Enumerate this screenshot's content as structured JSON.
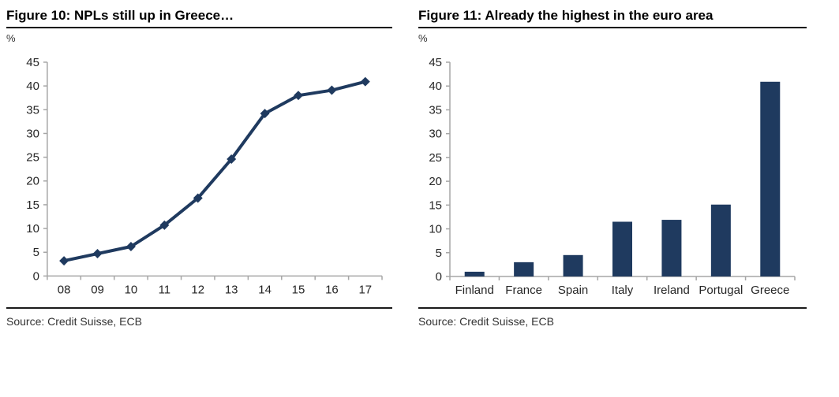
{
  "page": {
    "background": "#ffffff"
  },
  "chart_data": [
    {
      "type": "line",
      "title": "Figure 10: NPLs still up in Greece…",
      "ylabel": "%",
      "xlabel": "",
      "categories": [
        "08",
        "09",
        "10",
        "11",
        "12",
        "13",
        "14",
        "15",
        "16",
        "17"
      ],
      "values": [
        3.2,
        4.7,
        6.2,
        10.7,
        16.4,
        24.6,
        34.2,
        38.0,
        39.1,
        40.9
      ],
      "ylim": [
        0,
        45
      ],
      "ytick_step": 5,
      "grid": false,
      "legend": "none",
      "marker": "diamond",
      "color": "#1f3a5f",
      "source": "Source: Credit Suisse, ECB"
    },
    {
      "type": "bar",
      "title": "Figure 11: Already the highest in the euro area",
      "ylabel": "%",
      "xlabel": "",
      "categories": [
        "Finland",
        "France",
        "Spain",
        "Italy",
        "Ireland",
        "Portugal",
        "Greece"
      ],
      "values": [
        1.0,
        3.0,
        4.5,
        11.5,
        11.9,
        15.1,
        40.9
      ],
      "ylim": [
        0,
        45
      ],
      "ytick_step": 5,
      "grid": false,
      "legend": "none",
      "color": "#1f3a5f",
      "source": "Source: Credit Suisse, ECB"
    }
  ],
  "colors": {
    "series": "#1f3a5f",
    "axis": "#a6a6a6",
    "tick_text": "#262626",
    "title_text": "#000000",
    "source_text": "#333333"
  }
}
